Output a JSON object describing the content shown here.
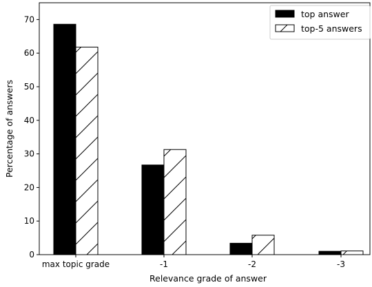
{
  "chart_data": {
    "type": "bar",
    "title": "",
    "xlabel": "Relevance grade of answer",
    "ylabel": "Percentage of answers",
    "categories": [
      "max topic grade",
      "-1",
      "-2",
      "-3"
    ],
    "series": [
      {
        "name": "top answer",
        "values": [
          68.6,
          26.7,
          3.4,
          1.0
        ],
        "style": "solid",
        "color": "#000000"
      },
      {
        "name": "top-5 answers",
        "values": [
          61.8,
          31.3,
          5.8,
          1.1
        ],
        "style": "hatched",
        "color": "#ffffff"
      }
    ],
    "ylim": [
      0,
      75
    ],
    "yticks": [
      0,
      10,
      20,
      30,
      40,
      50,
      60,
      70
    ],
    "grid": false,
    "legend_position": "top-right"
  }
}
